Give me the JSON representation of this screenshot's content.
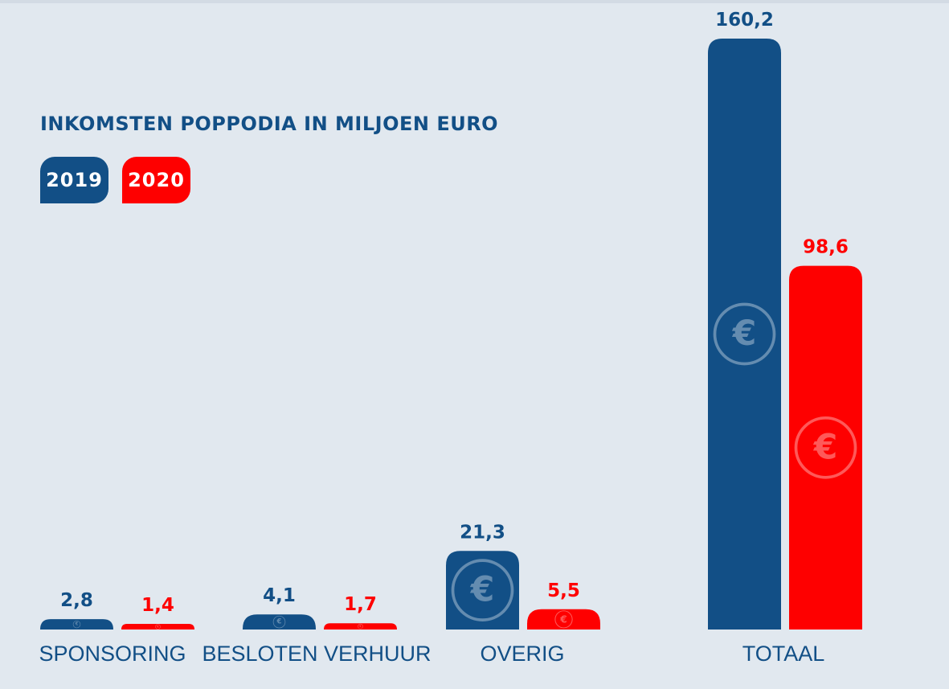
{
  "chart_data": {
    "type": "bar",
    "title": "INKOMSTEN POPPODIA IN MILJOEN EURO",
    "categories": [
      "SPONSORING",
      "BESLOTEN VERHUUR",
      "OVERIG",
      "TOTAAL"
    ],
    "series": [
      {
        "name": "2019",
        "color": "#124f86",
        "values": [
          2.8,
          4.1,
          21.3,
          160.2
        ],
        "value_labels": [
          "2,8",
          "4,1",
          "21,3",
          "160,2"
        ]
      },
      {
        "name": "2020",
        "color": "#fe0000",
        "values": [
          1.4,
          1.7,
          5.5,
          98.6
        ],
        "value_labels": [
          "1,4",
          "1,7",
          "5,5",
          "98,6"
        ]
      }
    ],
    "legend_position": "top-left",
    "grid": false,
    "bar_icon": "euro-coin-icon"
  }
}
